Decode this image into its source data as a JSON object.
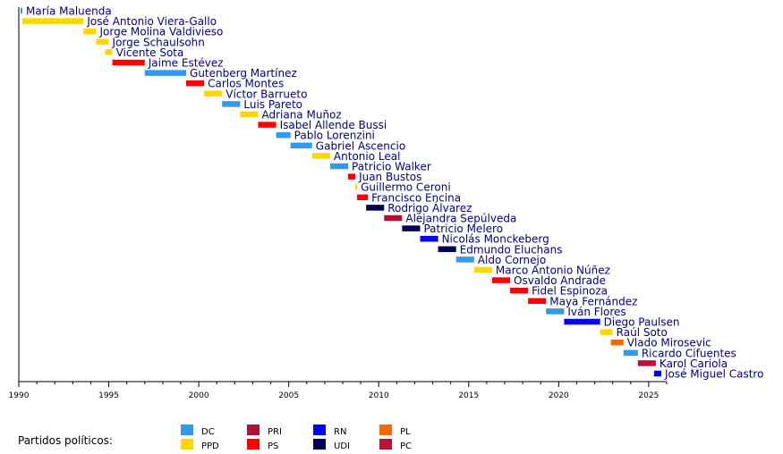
{
  "chart_data": {
    "type": "timeline",
    "title": "",
    "xlim": [
      1990,
      2026
    ],
    "xticks": [
      1990,
      1995,
      2000,
      2005,
      2010,
      2015,
      2020,
      2025
    ],
    "major_tick_step": 5,
    "minor_tick_step": 1,
    "party_colors": {
      "DC": "#3399ee",
      "PPD": "#ffd700",
      "PRI": "#b0103a",
      "PS": "#ff0000",
      "RN": "#0000ff",
      "UDI": "#000050",
      "PL": "#ff6600",
      "PC": "#c0103a"
    },
    "terms": [
      {
        "name": "María Maluenda",
        "party": "DC",
        "start": 1990.1,
        "end": 1990.15
      },
      {
        "name": "José Antonio Viera-Gallo",
        "party": "PPD",
        "start": 1990.2,
        "end": 1993.6
      },
      {
        "name": "Jorge Molina Valdivieso",
        "party": "PPD",
        "start": 1993.6,
        "end": 1994.3
      },
      {
        "name": "Jorge Schaulsohn",
        "party": "PPD",
        "start": 1994.3,
        "end": 1995.0
      },
      {
        "name": "Vicente Sota",
        "party": "PPD",
        "start": 1994.8,
        "end": 1995.2
      },
      {
        "name": "Jaime Estévez",
        "party": "PS",
        "start": 1995.2,
        "end": 1997.0
      },
      {
        "name": "Gutenberg Martínez",
        "party": "DC",
        "start": 1997.0,
        "end": 1999.3
      },
      {
        "name": "Carlos Montes",
        "party": "PS",
        "start": 1999.3,
        "end": 2000.3
      },
      {
        "name": "Víctor Barrueto",
        "party": "PPD",
        "start": 2000.3,
        "end": 2001.3
      },
      {
        "name": "Luis Pareto",
        "party": "DC",
        "start": 2001.3,
        "end": 2002.3
      },
      {
        "name": "Adriana Muñoz",
        "party": "PPD",
        "start": 2002.3,
        "end": 2003.3
      },
      {
        "name": "Isabel Allende Bussi",
        "party": "PS",
        "start": 2003.3,
        "end": 2004.3
      },
      {
        "name": "Pablo Lorenzini",
        "party": "DC",
        "start": 2004.3,
        "end": 2005.1
      },
      {
        "name": "Gabriel Ascencio",
        "party": "DC",
        "start": 2005.1,
        "end": 2006.3
      },
      {
        "name": "Antonio Leal",
        "party": "PPD",
        "start": 2006.3,
        "end": 2007.3
      },
      {
        "name": "Patricio Walker",
        "party": "DC",
        "start": 2007.3,
        "end": 2008.3
      },
      {
        "name": "Juan Bustos",
        "party": "PS",
        "start": 2008.3,
        "end": 2008.7
      },
      {
        "name": "Guillermo Ceroni",
        "party": "PPD",
        "start": 2008.7,
        "end": 2008.8
      },
      {
        "name": "Francisco Encina",
        "party": "PS",
        "start": 2008.8,
        "end": 2009.4
      },
      {
        "name": "Rodrigo Álvarez",
        "party": "UDI",
        "start": 2009.3,
        "end": 2010.3
      },
      {
        "name": "Alejandra Sepúlveda",
        "party": "PRI",
        "start": 2010.3,
        "end": 2011.3
      },
      {
        "name": "Patricio Melero",
        "party": "UDI",
        "start": 2011.3,
        "end": 2012.3
      },
      {
        "name": "Nicolás Monckeberg",
        "party": "RN",
        "start": 2012.3,
        "end": 2013.3
      },
      {
        "name": "Edmundo Eluchans",
        "party": "UDI",
        "start": 2013.3,
        "end": 2014.3
      },
      {
        "name": "Aldo Cornejo",
        "party": "DC",
        "start": 2014.3,
        "end": 2015.3
      },
      {
        "name": "Marco Antonio Núñez",
        "party": "PPD",
        "start": 2015.3,
        "end": 2016.3
      },
      {
        "name": "Osvaldo Andrade",
        "party": "PS",
        "start": 2016.3,
        "end": 2017.3
      },
      {
        "name": "Fidel Espinoza",
        "party": "PS",
        "start": 2017.3,
        "end": 2018.3
      },
      {
        "name": "Maya Fernández",
        "party": "PS",
        "start": 2018.3,
        "end": 2019.3
      },
      {
        "name": "Iván Flores",
        "party": "DC",
        "start": 2019.3,
        "end": 2020.3
      },
      {
        "name": "Diego Paulsen",
        "party": "RN",
        "start": 2020.3,
        "end": 2022.3
      },
      {
        "name": "Raúl Soto",
        "party": "PPD",
        "start": 2022.3,
        "end": 2023.0
      },
      {
        "name": "Vlado Mirosevic",
        "party": "PL",
        "start": 2022.9,
        "end": 2023.6
      },
      {
        "name": "Ricardo Cifuentes",
        "party": "DC",
        "start": 2023.6,
        "end": 2024.4
      },
      {
        "name": "Karol Cariola",
        "party": "PC",
        "start": 2024.4,
        "end": 2025.4
      },
      {
        "name": "José Miguel Castro",
        "party": "RN",
        "start": 2025.3,
        "end": 2025.7
      }
    ],
    "legend": {
      "title": "Partidos políticos:",
      "entries": [
        {
          "label": "DC",
          "party": "DC"
        },
        {
          "label": "PPD",
          "party": "PPD"
        },
        {
          "label": "PRI",
          "party": "PRI"
        },
        {
          "label": "PS",
          "party": "PS"
        },
        {
          "label": "RN",
          "party": "RN"
        },
        {
          "label": "UDI",
          "party": "UDI"
        },
        {
          "label": "PL",
          "party": "PL"
        },
        {
          "label": "PC",
          "party": "PC"
        }
      ]
    }
  }
}
